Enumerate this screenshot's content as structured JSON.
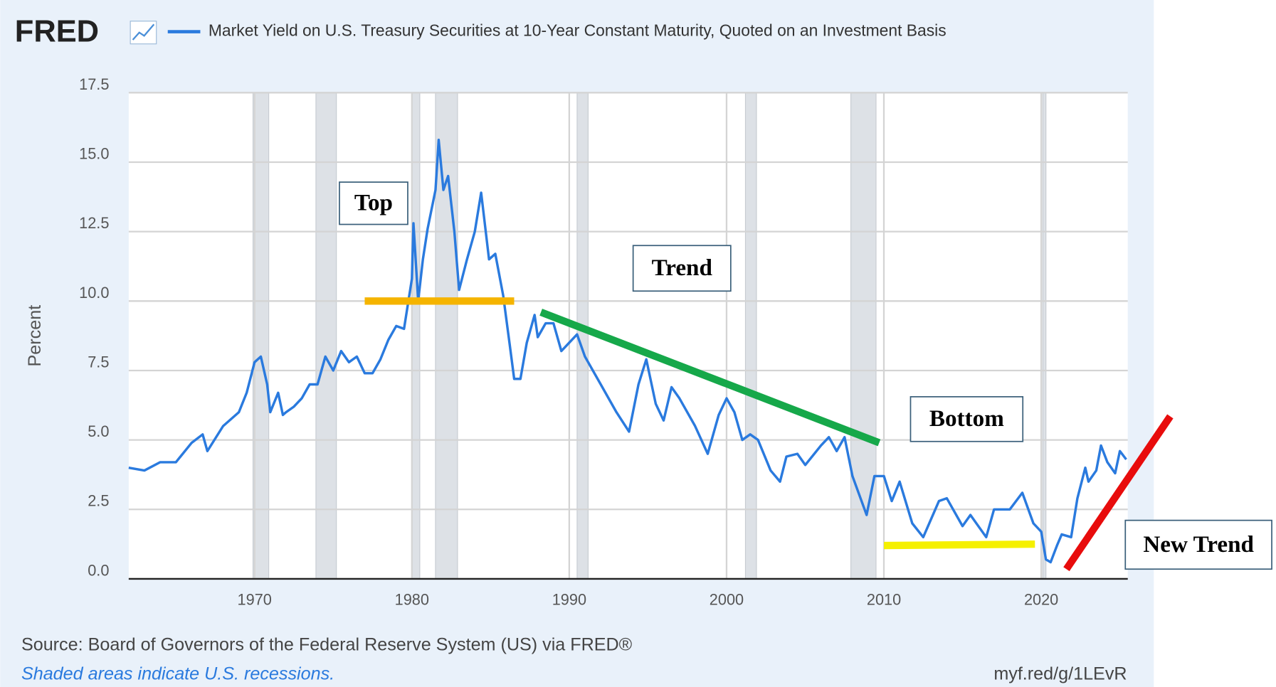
{
  "chart_data": {
    "type": "line",
    "logo": "FRED",
    "title": "Market Yield on U.S. Treasury Securities at 10-Year Constant Maturity, Quoted on an Investment Basis",
    "y_label": "Percent",
    "source": "Source: Board of Governors of the Federal Reserve System (US) via FRED®",
    "note": "Shaded areas indicate U.S. recessions.",
    "url": "myf.red/g/1LEvR",
    "xlim": [
      1962,
      2025.5
    ],
    "ylim": [
      0,
      17.5
    ],
    "xticks": [
      1970,
      1980,
      1990,
      2000,
      2010,
      2020
    ],
    "yticks": [
      {
        "value": 0,
        "label": "0.0"
      },
      2.5,
      {
        "value": 5,
        "label": "5.0"
      },
      7.5,
      {
        "value": 10,
        "label": "10.0"
      },
      12.5,
      {
        "value": 15,
        "label": "15.0"
      },
      17.5
    ],
    "grid": true,
    "recessions": [
      [
        1969.9,
        1970.9
      ],
      [
        1973.9,
        1975.2
      ],
      [
        1980.0,
        1980.5
      ],
      [
        1981.5,
        1982.9
      ],
      [
        1990.5,
        1991.2
      ],
      [
        2001.2,
        2001.9
      ],
      [
        2007.9,
        2009.5
      ],
      [
        2020.1,
        2020.3
      ]
    ],
    "series": [
      {
        "name": "Market Yield on U.S. Treasury Securities at 10-Year Constant Maturity, Quoted on an Investment Basis",
        "color": "#2a7ade",
        "x": [
          1962,
          1963,
          1964,
          1965,
          1966,
          1966.7,
          1967,
          1968,
          1969,
          1969.5,
          1970,
          1970.4,
          1970.8,
          1971,
          1971.5,
          1971.8,
          1972,
          1972.5,
          1973,
          1973.5,
          1974,
          1974.5,
          1975,
          1975.5,
          1976,
          1976.5,
          1977,
          1977.5,
          1978,
          1978.5,
          1979,
          1979.5,
          1980,
          1980.1,
          1980.4,
          1980.7,
          1981,
          1981.5,
          1981.7,
          1982,
          1982.3,
          1982.7,
          1983,
          1983.5,
          1984,
          1984.4,
          1984.9,
          1985.3,
          1985.8,
          1986.2,
          1986.5,
          1986.9,
          1987.3,
          1987.8,
          1988,
          1988.5,
          1989,
          1989.5,
          1990,
          1990.5,
          1991,
          1992,
          1993,
          1993.8,
          1994.4,
          1994.9,
          1995.5,
          1996,
          1996.5,
          1997,
          1998,
          1998.8,
          1999.5,
          2000,
          2000.5,
          2001,
          2001.5,
          2002,
          2002.8,
          2003.4,
          2003.8,
          2004.5,
          2005,
          2006,
          2006.5,
          2007,
          2007.5,
          2008,
          2008.9,
          2009.4,
          2010,
          2010.5,
          2011,
          2011.8,
          2012.5,
          2013.5,
          2014,
          2015,
          2015.5,
          2016.5,
          2017,
          2018,
          2018.8,
          2019.5,
          2020,
          2020.3,
          2020.6,
          2021,
          2021.3,
          2021.9,
          2022.3,
          2022.8,
          2023,
          2023.5,
          2023.8,
          2024.2,
          2024.7,
          2025,
          2025.4
        ],
        "values": [
          4.0,
          3.9,
          4.2,
          4.2,
          4.9,
          5.2,
          4.6,
          5.5,
          6.0,
          6.7,
          7.8,
          8.0,
          7.0,
          6.0,
          6.7,
          5.9,
          6.0,
          6.2,
          6.5,
          7.0,
          7.0,
          8.0,
          7.5,
          8.2,
          7.8,
          8.0,
          7.4,
          7.4,
          7.9,
          8.6,
          9.1,
          9.0,
          10.8,
          12.8,
          10.0,
          11.5,
          12.6,
          14.0,
          15.8,
          14.0,
          14.5,
          12.5,
          10.4,
          11.5,
          12.5,
          13.9,
          11.5,
          11.7,
          10.2,
          8.5,
          7.2,
          7.2,
          8.5,
          9.5,
          8.7,
          9.2,
          9.2,
          8.2,
          8.5,
          8.8,
          8.0,
          7.0,
          6.0,
          5.3,
          7.0,
          7.9,
          6.3,
          5.7,
          6.9,
          6.5,
          5.5,
          4.5,
          5.9,
          6.5,
          6.0,
          5.0,
          5.2,
          5.0,
          3.9,
          3.5,
          4.4,
          4.5,
          4.1,
          4.8,
          5.1,
          4.6,
          5.1,
          3.7,
          2.3,
          3.7,
          3.7,
          2.8,
          3.5,
          2.0,
          1.5,
          2.8,
          2.9,
          1.9,
          2.3,
          1.5,
          2.5,
          2.5,
          3.1,
          2.0,
          1.7,
          0.7,
          0.6,
          1.2,
          1.6,
          1.5,
          2.9,
          4.0,
          3.5,
          3.9,
          4.8,
          4.2,
          3.8,
          4.6,
          4.3
        ]
      }
    ],
    "trend_lines": [
      {
        "color": "#f5b400",
        "x": [
          1977,
          1986.5
        ],
        "y": [
          10,
          10
        ]
      },
      {
        "color": "#16a84a",
        "x": [
          1988.2,
          2009.7
        ],
        "y": [
          9.6,
          4.9
        ]
      },
      {
        "color": "#f5f000",
        "x": [
          2010,
          2019.6
        ],
        "y": [
          1.2,
          1.25
        ]
      },
      {
        "color": "#e80c0c",
        "x": [
          2021.6,
          2028.2
        ],
        "y": [
          0.35,
          5.85
        ]
      }
    ],
    "annotations": [
      "Top",
      "Trend",
      "Bottom",
      "New Trend"
    ]
  }
}
